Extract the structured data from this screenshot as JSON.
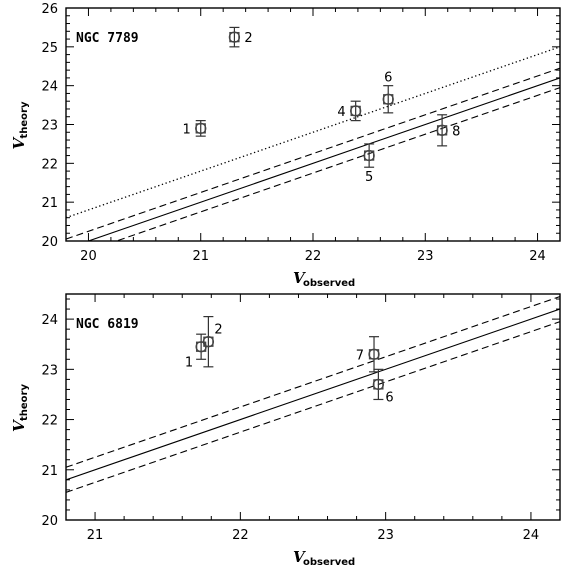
{
  "chart_data": [
    {
      "type": "scatter",
      "title": "NGC 7789",
      "xlabel": {
        "main": "V",
        "sub": "observed"
      },
      "ylabel": {
        "main": "V",
        "sub": "theory"
      },
      "xlim": [
        19.8,
        24.2
      ],
      "ylim": [
        20,
        26
      ],
      "xticks": [
        "20",
        "21",
        "22",
        "23",
        "24"
      ],
      "yticks": [
        "20",
        "21",
        "22",
        "23",
        "24",
        "25",
        "26"
      ],
      "points": [
        {
          "label": "1",
          "x": 21.0,
          "y": 22.9,
          "yerr": 0.2,
          "label_side": "left"
        },
        {
          "label": "2",
          "x": 21.3,
          "y": 25.25,
          "yerr": 0.25,
          "label_side": "right"
        },
        {
          "label": "4",
          "x": 22.38,
          "y": 23.35,
          "yerr": 0.25,
          "label_side": "left"
        },
        {
          "label": "5",
          "x": 22.5,
          "y": 22.2,
          "yerr": 0.3,
          "label_side": "below"
        },
        {
          "label": "6",
          "x": 22.67,
          "y": 23.65,
          "yerr": 0.35,
          "label_side": "above"
        },
        {
          "label": "8",
          "x": 23.15,
          "y": 22.85,
          "yerr": 0.4,
          "label_side": "right"
        }
      ],
      "lines": [
        {
          "style": "solid",
          "x": [
            19.8,
            24.2
          ],
          "y": [
            19.8,
            24.2
          ]
        },
        {
          "style": "dashed",
          "x": [
            19.8,
            24.2
          ],
          "y": [
            20.05,
            24.45
          ]
        },
        {
          "style": "dashed",
          "x": [
            19.8,
            24.2
          ],
          "y": [
            19.55,
            23.95
          ]
        },
        {
          "style": "dotted",
          "x": [
            19.8,
            24.2
          ],
          "y": [
            20.6,
            25.0
          ]
        }
      ]
    },
    {
      "type": "scatter",
      "title": "NGC 6819",
      "xlabel": {
        "main": "V",
        "sub": "observed"
      },
      "ylabel": {
        "main": "V",
        "sub": "theory"
      },
      "xlim": [
        20.8,
        24.2
      ],
      "ylim": [
        20,
        24.5
      ],
      "xticks": [
        "21",
        "22",
        "23",
        "24"
      ],
      "yticks": [
        "20",
        "21",
        "22",
        "23",
        "24"
      ],
      "points": [
        {
          "label": "1",
          "x": 21.73,
          "y": 23.45,
          "yerr": 0.25,
          "label_side": "below-left"
        },
        {
          "label": "2",
          "x": 21.78,
          "y": 23.55,
          "yerr": 0.5,
          "label_side": "above-right"
        },
        {
          "label": "7",
          "x": 22.92,
          "y": 23.3,
          "yerr": 0.35,
          "label_side": "left"
        },
        {
          "label": "6",
          "x": 22.95,
          "y": 22.7,
          "yerr": 0.3,
          "label_side": "below-right"
        }
      ],
      "lines": [
        {
          "style": "solid",
          "x": [
            20.8,
            24.2
          ],
          "y": [
            20.8,
            24.2
          ]
        },
        {
          "style": "dashed",
          "x": [
            20.8,
            24.2
          ],
          "y": [
            21.05,
            24.45
          ]
        },
        {
          "style": "dashed",
          "x": [
            20.8,
            24.2
          ],
          "y": [
            20.55,
            23.95
          ]
        }
      ]
    }
  ]
}
